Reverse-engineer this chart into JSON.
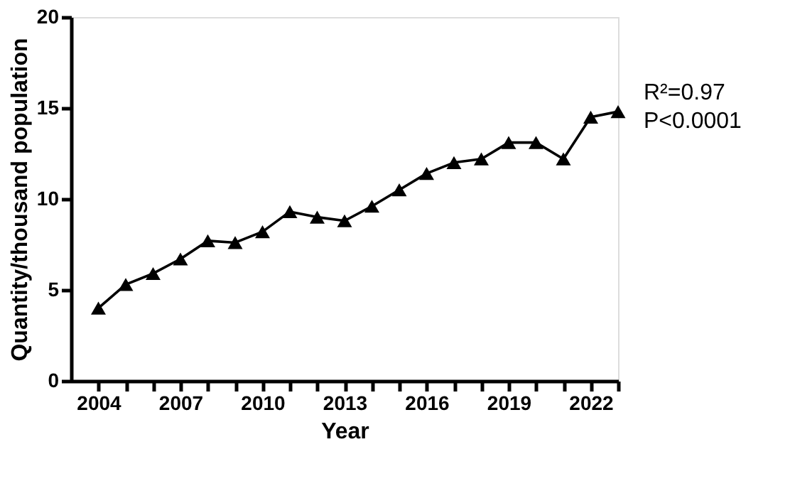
{
  "chart_data": {
    "type": "line",
    "xlabel": "Year",
    "ylabel": "Quantity/thousand population",
    "x": [
      2004,
      2005,
      2006,
      2007,
      2008,
      2009,
      2010,
      2011,
      2012,
      2013,
      2014,
      2015,
      2016,
      2017,
      2018,
      2019,
      2020,
      2021,
      2022,
      2023
    ],
    "series": [
      {
        "color": "#000000",
        "values": [
          4.0,
          5.3,
          5.9,
          6.7,
          7.7,
          7.6,
          8.2,
          9.3,
          9.0,
          8.8,
          9.6,
          10.5,
          11.4,
          12.0,
          12.2,
          13.1,
          13.1,
          12.2,
          14.5,
          14.8
        ]
      }
    ],
    "xlim": [
      2003,
      2023
    ],
    "xticks": [
      2004,
      {
        "value": 2005,
        "label": null
      },
      {
        "value": 2006,
        "label": null
      },
      2007,
      {
        "value": 2008,
        "label": null
      },
      {
        "value": 2009,
        "label": null
      },
      2010,
      {
        "value": 2011,
        "label": null
      },
      {
        "value": 2012,
        "label": null
      },
      2013,
      {
        "value": 2014,
        "label": null
      },
      {
        "value": 2015,
        "label": null
      },
      2016,
      {
        "value": 2017,
        "label": null
      },
      {
        "value": 2018,
        "label": null
      },
      2019,
      {
        "value": 2020,
        "label": null
      },
      {
        "value": 2021,
        "label": null
      },
      2022,
      {
        "value": 2023,
        "label": null
      }
    ],
    "ylim": [
      0,
      20
    ],
    "yticks": [
      0,
      5,
      10,
      15,
      20
    ],
    "annotations": [
      "R²=0.97",
      "P<0.0001"
    ],
    "grid": false,
    "marker": "triangle",
    "line_style": "solid"
  }
}
